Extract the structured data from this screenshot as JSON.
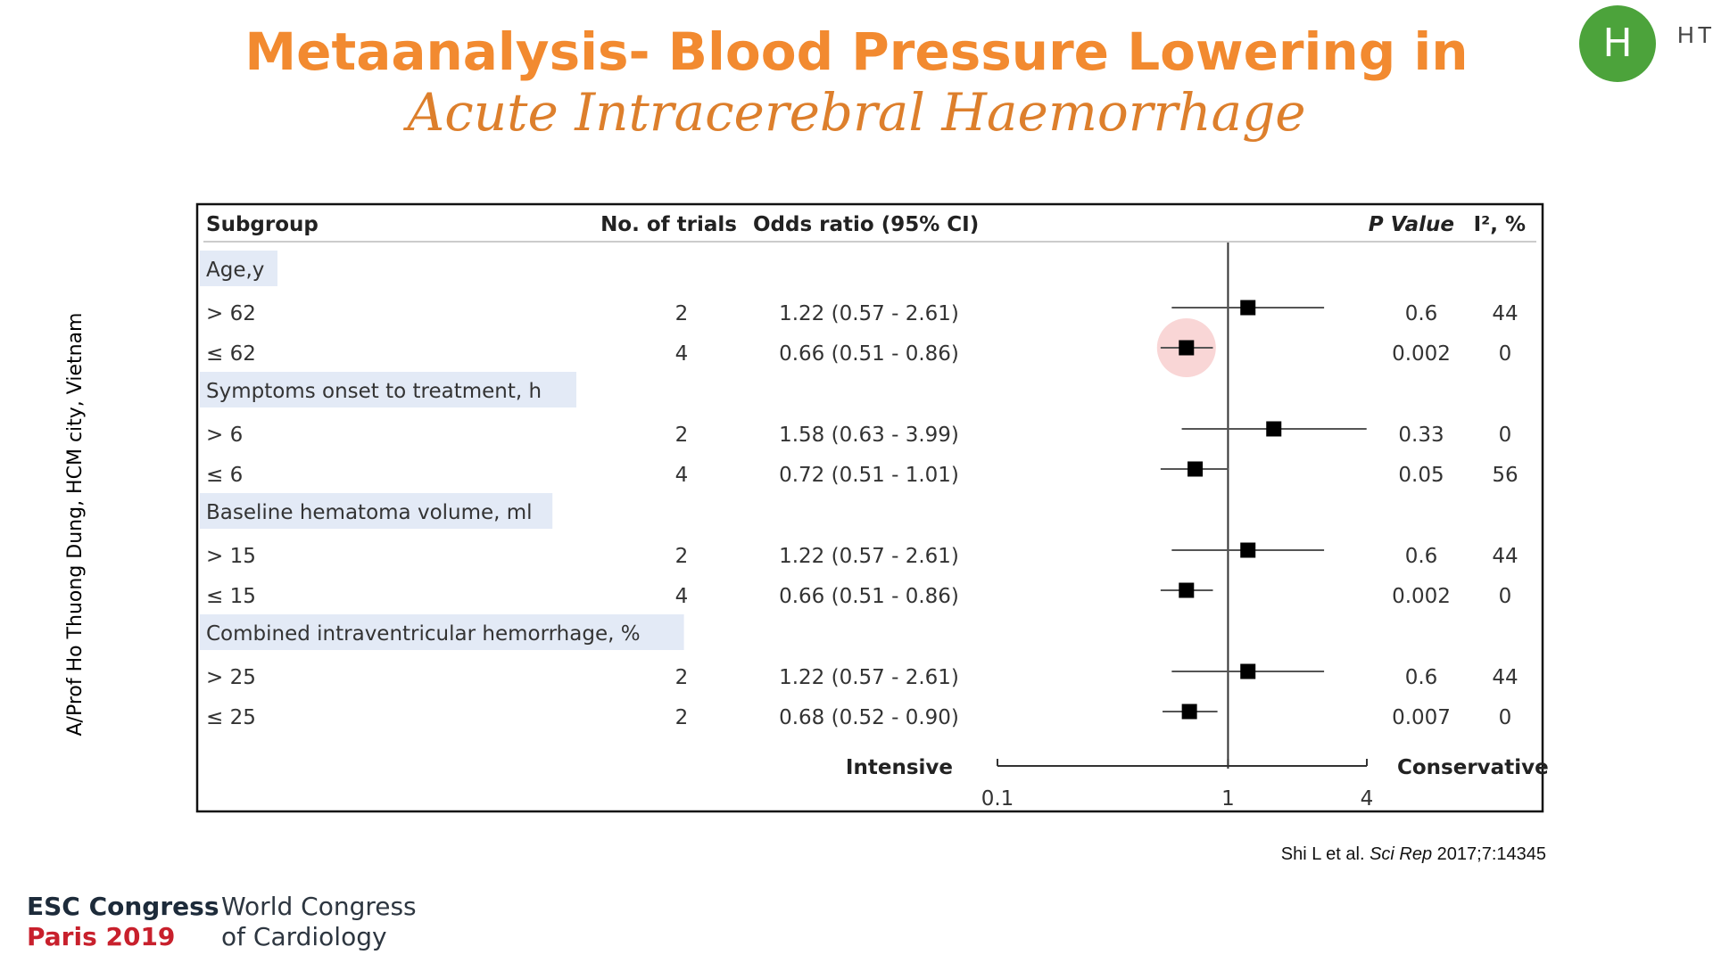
{
  "slide": {
    "title_line1": "Metaanalysis- Blood Pressure Lowering in",
    "title_line2": "Acute Intracerebral Haemorrhage",
    "side_text": "A/Prof Ho Thuong Dung, HCM city, Vietnam",
    "citation_authors": "Shi L et al.",
    "citation_journal": "Sci Rep",
    "citation_ref": "2017;7:14345",
    "footer": {
      "esc": "ESC Congress",
      "paris": "Paris 2019",
      "wc_line1": "World Congress",
      "wc_line2": "of Cardiology"
    },
    "avatar": {
      "initial": "H",
      "name": "HT",
      "color": "#4ca33b"
    }
  },
  "chart_data": {
    "type": "forest",
    "columns": {
      "subgroup": "Subgroup",
      "trials": "No. of trials",
      "or": "Odds ratio (95% CI)",
      "p": "P Value",
      "i2": "I², %"
    },
    "x_scale": "log",
    "x_ticks": [
      0.1,
      1,
      4
    ],
    "x_tick_labels": [
      "0.1",
      "1",
      "4"
    ],
    "xlim": [
      0.1,
      4
    ],
    "reference_line": 1,
    "left_label": "Intensive",
    "right_label": "Conservative",
    "groups": [
      {
        "label": "Age,y",
        "rows": [
          {
            "label": "> 62",
            "trials": "2",
            "or_text": "1.22 (0.57 - 2.61)",
            "or": 1.22,
            "lo": 0.57,
            "hi": 2.61,
            "p": "0.6",
            "i2": "44"
          },
          {
            "label": "≤ 62",
            "trials": "4",
            "or_text": "0.66 (0.51 - 0.86)",
            "or": 0.66,
            "lo": 0.51,
            "hi": 0.86,
            "p": "0.002",
            "i2": "0",
            "highlight": true
          }
        ]
      },
      {
        "label": "Symptoms onset to treatment, h",
        "rows": [
          {
            "label": "> 6",
            "trials": "2",
            "or_text": "1.58 (0.63 - 3.99)",
            "or": 1.58,
            "lo": 0.63,
            "hi": 3.99,
            "p": "0.33",
            "i2": "0"
          },
          {
            "label": "≤ 6",
            "trials": "4",
            "or_text": "0.72 (0.51 - 1.01)",
            "or": 0.72,
            "lo": 0.51,
            "hi": 1.01,
            "p": "0.05",
            "i2": "56"
          }
        ]
      },
      {
        "label": "Baseline hematoma volume, ml",
        "rows": [
          {
            "label": "> 15",
            "trials": "2",
            "or_text": "1.22 (0.57 - 2.61)",
            "or": 1.22,
            "lo": 0.57,
            "hi": 2.61,
            "p": "0.6",
            "i2": "44"
          },
          {
            "label": "≤ 15",
            "trials": "4",
            "or_text": "0.66 (0.51 - 0.86)",
            "or": 0.66,
            "lo": 0.51,
            "hi": 0.86,
            "p": "0.002",
            "i2": "0"
          }
        ]
      },
      {
        "label": "Combined intraventricular hemorrhage, %",
        "rows": [
          {
            "label": "> 25",
            "trials": "2",
            "or_text": "1.22 (0.57 - 2.61)",
            "or": 1.22,
            "lo": 0.57,
            "hi": 2.61,
            "p": "0.6",
            "i2": "44"
          },
          {
            "label": "≤ 25",
            "trials": "2",
            "or_text": "0.68 (0.52 - 0.90)",
            "or": 0.68,
            "lo": 0.52,
            "hi": 0.9,
            "p": "0.007",
            "i2": "0"
          }
        ]
      }
    ]
  }
}
